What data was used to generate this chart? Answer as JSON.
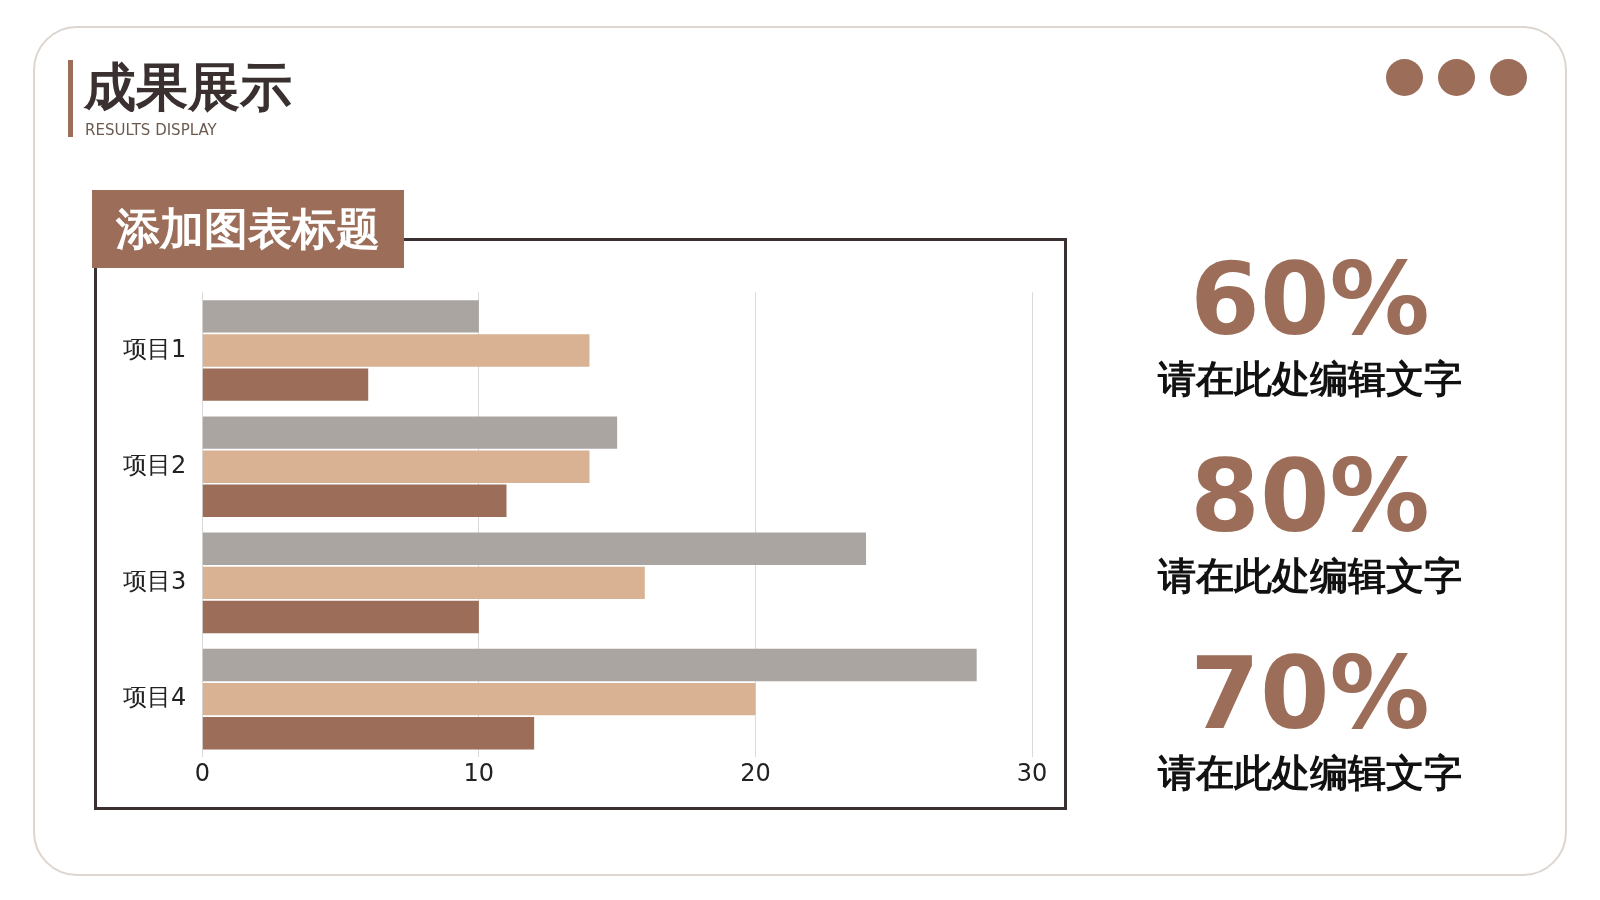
{
  "chart_data": [
    {
      "type": "bar",
      "title": "添加图表标题",
      "orientation": "horizontal",
      "categories": [
        "项目1",
        "项目2",
        "项目3",
        "项目4"
      ],
      "series": [
        {
          "color": "#aba5a1",
          "values": [
            10,
            15,
            24,
            28
          ]
        },
        {
          "color": "#d8b292",
          "values": [
            14,
            14,
            16,
            20
          ]
        },
        {
          "color": "#9c6d58",
          "values": [
            6,
            11,
            10,
            12
          ]
        }
      ],
      "xlim": [
        0,
        30
      ],
      "xticks": [
        0,
        10,
        20,
        30
      ],
      "grid": "x",
      "legend": false
    },
    {
      "type": "other",
      "title": "成果展示",
      "subtitle": "RESULTS DISPLAY",
      "annotations": [
        "60%",
        "请在此处编辑文字",
        "80%",
        "请在此处编辑文字",
        "70%",
        "请在此处编辑文字"
      ]
    }
  ]
}
